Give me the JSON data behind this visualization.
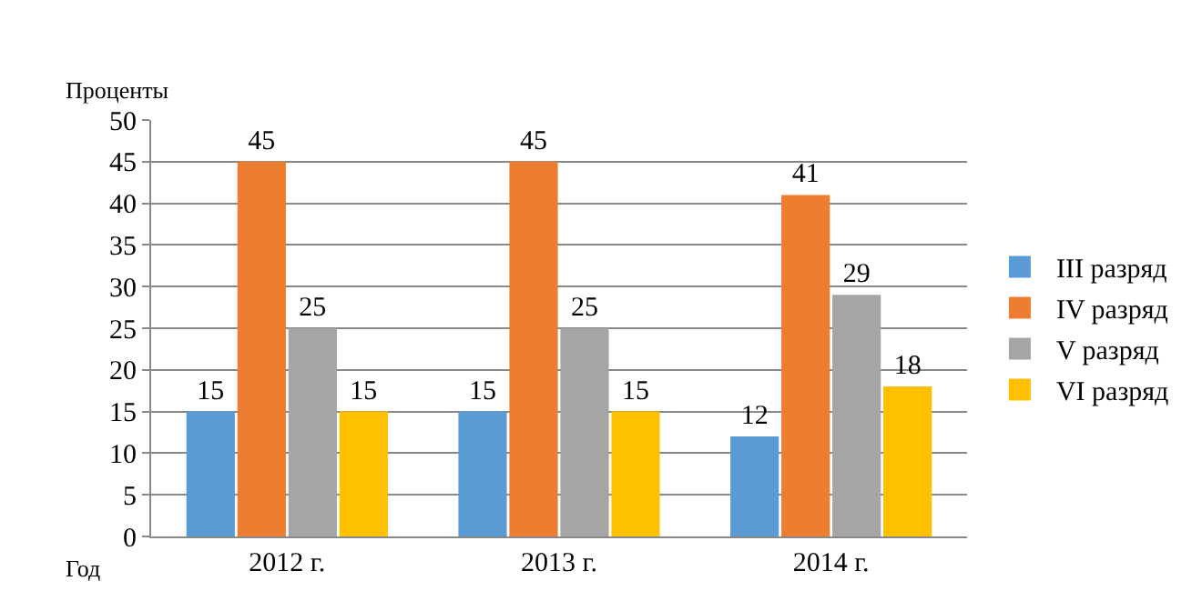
{
  "chart_data": {
    "type": "bar",
    "ylabel": "Проценты",
    "xlabel": "Год",
    "categories": [
      "2012 г.",
      "2013 г.",
      "2014 г."
    ],
    "series": [
      {
        "name": "III разряд",
        "color": "#5b9bd5",
        "values": [
          15,
          15,
          12
        ]
      },
      {
        "name": "IV разряд",
        "color": "#ed7d31",
        "values": [
          45,
          45,
          41
        ]
      },
      {
        "name": "V разряд",
        "color": "#a5a5a5",
        "values": [
          25,
          25,
          29
        ]
      },
      {
        "name": "VI разряд",
        "color": "#ffc000",
        "values": [
          15,
          15,
          18
        ]
      }
    ],
    "ylim": [
      0,
      50
    ],
    "yticks": [
      0,
      5,
      10,
      15,
      20,
      25,
      30,
      35,
      40,
      45,
      50
    ],
    "grid": "y",
    "legend": "right",
    "data_labels": true
  }
}
